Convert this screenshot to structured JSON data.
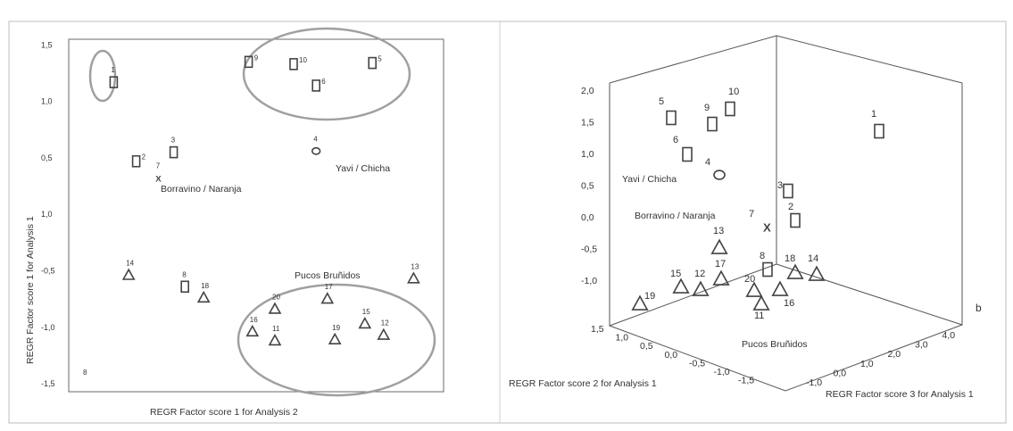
{
  "chart_data": [
    {
      "type": "scatter",
      "title": "",
      "xlabel": "REGR Factor score 1 for Analysis 2",
      "ylabel": "REGR Factor score 1 for Analysis 1",
      "ytick_labels": [
        "1,5",
        "1,0",
        "0,5",
        "1,0",
        "-0,5",
        "-1,0",
        "-1,5"
      ],
      "markers": {
        "square": "Yavi / Chicha group",
        "circle": "Yavi / Chicha",
        "x": "Borravino / Naranja",
        "triangle": "Pucos Bruñidos"
      },
      "points": [
        {
          "id": "1",
          "marker": "square",
          "x": 0.12,
          "y": 1.17
        },
        {
          "id": "2",
          "marker": "square",
          "x": 0.18,
          "y": 0.47
        },
        {
          "id": "3",
          "marker": "square",
          "x": 0.28,
          "y": 0.55
        },
        {
          "id": "7",
          "marker": "x",
          "x": 0.24,
          "y": 0.32
        },
        {
          "id": "9",
          "marker": "square",
          "x": 0.48,
          "y": 1.35
        },
        {
          "id": "10",
          "marker": "square",
          "x": 0.6,
          "y": 1.33
        },
        {
          "id": "6",
          "marker": "square",
          "x": 0.66,
          "y": 1.14
        },
        {
          "id": "5",
          "marker": "square",
          "x": 0.81,
          "y": 1.34
        },
        {
          "id": "4",
          "marker": "circle",
          "x": 0.66,
          "y": 0.56
        },
        {
          "id": "14",
          "marker": "triangle",
          "x": 0.16,
          "y": -0.54
        },
        {
          "id": "8",
          "marker": "square",
          "x": 0.31,
          "y": -0.64
        },
        {
          "id": "18",
          "marker": "triangle",
          "x": 0.36,
          "y": -0.74
        },
        {
          "id": "13",
          "marker": "triangle",
          "x": 0.92,
          "y": -0.57
        },
        {
          "id": "17",
          "marker": "triangle",
          "x": 0.69,
          "y": -0.75
        },
        {
          "id": "20",
          "marker": "triangle",
          "x": 0.55,
          "y": -0.84
        },
        {
          "id": "16",
          "marker": "triangle",
          "x": 0.49,
          "y": -1.04
        },
        {
          "id": "11",
          "marker": "triangle",
          "x": 0.55,
          "y": -1.12
        },
        {
          "id": "19",
          "marker": "triangle",
          "x": 0.71,
          "y": -1.11
        },
        {
          "id": "15",
          "marker": "triangle",
          "x": 0.79,
          "y": -0.97
        },
        {
          "id": "12",
          "marker": "triangle",
          "x": 0.84,
          "y": -1.07
        }
      ],
      "outlier_label": "8",
      "groups": [
        {
          "name": "Yavi / Chicha",
          "marker": "circle"
        },
        {
          "name": "Borravino / Naranja",
          "marker": "x"
        },
        {
          "name": "Pucos Bruñidos",
          "marker": "triangle"
        }
      ]
    },
    {
      "type": "scatter",
      "title": "",
      "xlabel": "REGR Factor score 3 for Analysis 1",
      "ylabel": "REGR Factor score 2 for Analysis 1",
      "zlabel": "",
      "z_tick_labels": [
        "2,0",
        "1,5",
        "1,0",
        "0,5",
        "0,0",
        "-0,5",
        "-1,0"
      ],
      "depth_tick_labels": [
        "1,5",
        "1,0",
        "0,5",
        "0,0",
        "-0,5",
        "-1,0",
        "-1,5"
      ],
      "right_tick_labels": [
        "-1,0",
        "0,0",
        "1,0",
        "2,0",
        "3,0",
        "4,0"
      ],
      "panel_letter": "b",
      "points": [
        {
          "id": "1",
          "marker": "square"
        },
        {
          "id": "5",
          "marker": "square"
        },
        {
          "id": "9",
          "marker": "square"
        },
        {
          "id": "10",
          "marker": "square"
        },
        {
          "id": "6",
          "marker": "square"
        },
        {
          "id": "4",
          "marker": "circle"
        },
        {
          "id": "3",
          "marker": "square"
        },
        {
          "id": "2",
          "marker": "square"
        },
        {
          "id": "7",
          "marker": "x"
        },
        {
          "id": "13",
          "marker": "triangle"
        },
        {
          "id": "8",
          "marker": "square"
        },
        {
          "id": "18",
          "marker": "triangle"
        },
        {
          "id": "14",
          "marker": "triangle"
        },
        {
          "id": "15",
          "marker": "triangle"
        },
        {
          "id": "12",
          "marker": "triangle"
        },
        {
          "id": "17",
          "marker": "triangle"
        },
        {
          "id": "20",
          "marker": "triangle"
        },
        {
          "id": "16",
          "marker": "triangle"
        },
        {
          "id": "11",
          "marker": "triangle"
        },
        {
          "id": "19",
          "marker": "triangle"
        }
      ],
      "groups": [
        {
          "name": "Yavi / Chicha",
          "marker": "circle"
        },
        {
          "name": "Borravino / Naranja",
          "marker": "x"
        },
        {
          "name": "Pucos Bruñidos",
          "marker": "triangle"
        }
      ]
    }
  ]
}
